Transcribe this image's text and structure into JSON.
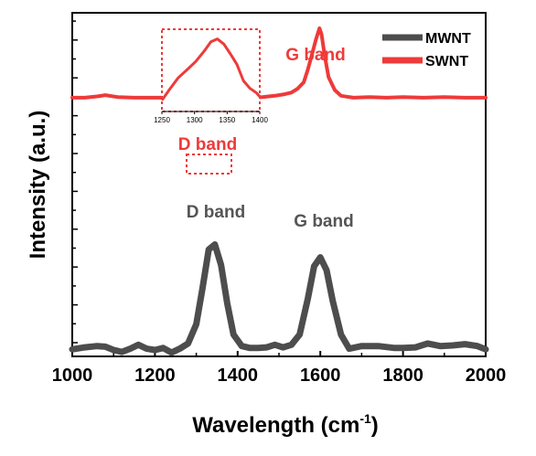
{
  "chart_data": {
    "type": "line",
    "xlabel": "Wavelength (cm",
    "xlabel_sup": "-1",
    "xlabel_close": ")",
    "ylabel": "Intensity (a.u.)",
    "xlim": [
      1000,
      2000
    ],
    "x_ticks": [
      "1000",
      "1200",
      "1400",
      "1600",
      "1800",
      "2000"
    ],
    "legend_position": "top-right",
    "series": [
      {
        "name": "MWNT",
        "color": "#4d4d4d",
        "x": [
          1000,
          1030,
          1060,
          1080,
          1100,
          1120,
          1140,
          1160,
          1180,
          1200,
          1220,
          1240,
          1260,
          1280,
          1300,
          1315,
          1330,
          1345,
          1360,
          1375,
          1390,
          1410,
          1430,
          1450,
          1470,
          1490,
          1510,
          1530,
          1550,
          1570,
          1585,
          1600,
          1615,
          1630,
          1650,
          1670,
          1700,
          1740,
          1780,
          1800,
          1830,
          1860,
          1875,
          1890,
          1920,
          1950,
          1980,
          2000
        ],
        "y": [
          0.005,
          0.02,
          0.03,
          0.025,
          0.0,
          -0.015,
          0.01,
          0.04,
          0.01,
          0.0,
          0.015,
          -0.02,
          0.01,
          0.05,
          0.2,
          0.48,
          0.78,
          0.82,
          0.66,
          0.36,
          0.12,
          0.03,
          0.015,
          0.015,
          0.02,
          0.04,
          0.02,
          0.04,
          0.12,
          0.4,
          0.65,
          0.72,
          0.62,
          0.38,
          0.12,
          0.01,
          0.03,
          0.03,
          0.015,
          0.015,
          0.02,
          0.05,
          0.04,
          0.03,
          0.035,
          0.045,
          0.03,
          0.005
        ]
      },
      {
        "name": "SWNT",
        "color": "#ee3a3a",
        "x": [
          1000,
          1030,
          1060,
          1080,
          1110,
          1150,
          1200,
          1250,
          1280,
          1300,
          1320,
          1335,
          1350,
          1370,
          1400,
          1430,
          1460,
          1490,
          1510,
          1530,
          1545,
          1560,
          1570,
          1580,
          1590,
          1598,
          1603,
          1610,
          1620,
          1635,
          1650,
          1680,
          1720,
          1760,
          1800,
          1850,
          1900,
          1950,
          2000
        ],
        "y": [
          1.96,
          1.96,
          1.97,
          1.98,
          1.965,
          1.96,
          1.96,
          1.96,
          1.965,
          1.975,
          1.985,
          1.985,
          1.975,
          1.965,
          1.96,
          1.96,
          1.965,
          1.975,
          1.985,
          2.0,
          2.03,
          2.08,
          2.18,
          2.3,
          2.42,
          2.5,
          2.45,
          2.3,
          2.12,
          2.02,
          1.975,
          1.96,
          1.965,
          1.96,
          1.965,
          1.96,
          1.965,
          1.96,
          1.96
        ]
      }
    ],
    "annotations": [
      {
        "text": "D band",
        "color": "#ee3a3a"
      },
      {
        "text": "G band",
        "color": "#ee3a3a"
      },
      {
        "text": "D band",
        "color": "#555555"
      },
      {
        "text": "G band",
        "color": "#555555"
      }
    ],
    "inset": {
      "xlim": [
        1250,
        1400
      ],
      "x_ticks": [
        "1250",
        "1300",
        "1350",
        "1400"
      ],
      "x": [
        1250,
        1262,
        1275,
        1290,
        1302,
        1315,
        1325,
        1335,
        1345,
        1355,
        1365,
        1375,
        1385,
        1395,
        1400
      ],
      "y": [
        0.1,
        0.25,
        0.4,
        0.52,
        0.62,
        0.76,
        0.88,
        0.92,
        0.85,
        0.72,
        0.58,
        0.36,
        0.26,
        0.2,
        0.15
      ]
    }
  }
}
